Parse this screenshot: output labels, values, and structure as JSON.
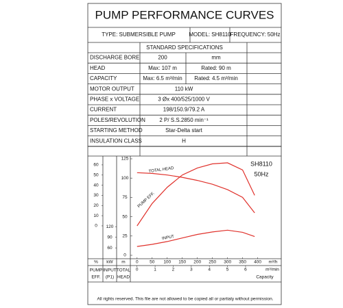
{
  "header": {
    "title": "PUMP PERFORMANCE CURVES",
    "type": "TYPE: SUBMERSIBLE  PUMP",
    "model": "MODEL: SH8110",
    "frequency": "FREQUENCY: 50Hz"
  },
  "specs": {
    "heading": "STANDARD SPECIFICATIONS",
    "rows": [
      [
        "DISCHARGE BORE",
        "200",
        "mm"
      ],
      [
        "HEAD",
        "Max: 107 m",
        "Rated: 90 m"
      ],
      [
        "CAPACITY",
        "Max: 6.5 m³/min",
        "Rated: 4.5 m³/min"
      ],
      [
        "MOTOR OUTPUT",
        "110  kW"
      ],
      [
        "PHASE x VOLTAGE",
        "3 Øx 400/525/1000 V"
      ],
      [
        "CURRENT",
        "198/150.9/79.2 A"
      ],
      [
        "POLES/REVOLUTION",
        "2 P/ S.S.2850 min⁻¹"
      ],
      [
        "STARTING METHOD",
        "Star-Delta start"
      ],
      [
        "INSULATION CLASS",
        "H"
      ]
    ]
  },
  "chart_data": {
    "type": "line",
    "model": "SH8110",
    "frequency": "50Hz",
    "axis_units": {
      "eff": "%",
      "input": "kW",
      "head": "m",
      "x": "m³/h",
      "x2": "m³/min"
    },
    "axis_names": {
      "eff": [
        "PUMP",
        "EFF."
      ],
      "input": [
        "INPUT",
        "(P1)"
      ],
      "head": [
        "TOTAL",
        "HEAD"
      ],
      "x": "Capacity"
    },
    "x": [
      0,
      50,
      100,
      150,
      200,
      250,
      300,
      350,
      390
    ],
    "xlim": [
      -20,
      460
    ],
    "xticks": [
      0,
      50,
      100,
      150,
      200,
      250,
      300,
      350,
      400
    ],
    "x2lim": [
      -0.33,
      7.67
    ],
    "x2ticks": [
      0,
      1,
      2,
      3,
      4,
      5,
      6
    ],
    "ylim": [
      0,
      125
    ],
    "yticks": [
      0,
      25,
      50,
      75,
      100,
      125
    ],
    "y2lim": [
      -29,
      66
    ],
    "y2ticks": [
      0,
      10,
      20,
      30,
      40,
      50,
      60
    ],
    "y3lim": [
      39,
      312
    ],
    "y3ticks": [
      60,
      90,
      120
    ],
    "series": [
      {
        "name": "TOTAL HEAD",
        "color": "#e0302a",
        "axis": "y",
        "values": [
          107,
          106,
          104,
          101,
          97,
          92,
          85,
          75,
          55
        ]
      },
      {
        "name": "PUMP EFF.",
        "color": "#e0302a",
        "axis": "y2",
        "values": [
          0,
          22,
          38,
          50,
          57,
          61,
          62,
          55,
          30
        ]
      },
      {
        "name": "INPUT",
        "color": "#e0302a",
        "axis": "y3",
        "values": [
          64,
          70,
          78,
          88,
          98,
          105,
          110,
          104,
          92
        ]
      }
    ]
  },
  "footer": "All rights reserved. This file are not allowed to be copied all or partialy without permission."
}
